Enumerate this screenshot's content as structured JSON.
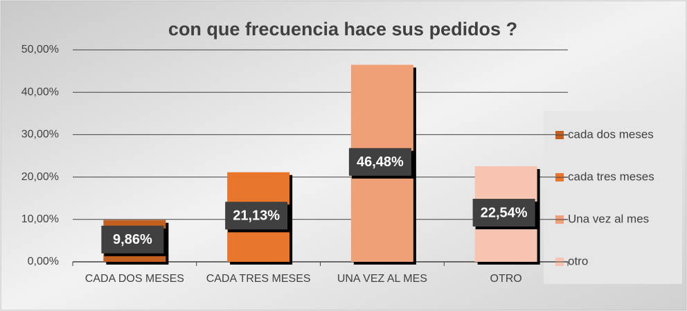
{
  "chart_data": {
    "type": "bar",
    "title": "con que frecuencia  hace sus pedidos ?",
    "categories": [
      "CADA DOS MESES",
      "CADA TRES MESES",
      "UNA VEZ AL MES",
      "OTRO"
    ],
    "values": [
      9.86,
      21.13,
      46.48,
      22.54
    ],
    "value_labels": [
      "9,86%",
      "21,13%",
      "46,48%",
      "22,54%"
    ],
    "colors": [
      "#c4601f",
      "#e8762b",
      "#f0a077",
      "#f6c4b0"
    ],
    "legend": [
      "cada dos meses",
      "cada tres meses",
      "Una vez al mes",
      "otro"
    ],
    "ylim": [
      0,
      50
    ],
    "yticks": [
      {
        "value": 0,
        "label": "0,00%"
      },
      {
        "value": 10,
        "label": "10,00%"
      },
      {
        "value": 20,
        "label": "20,00%"
      },
      {
        "value": 30,
        "label": "30,00%"
      },
      {
        "value": 40,
        "label": "40,00%"
      },
      {
        "value": 50,
        "label": "50,00%"
      }
    ],
    "grid": true
  }
}
